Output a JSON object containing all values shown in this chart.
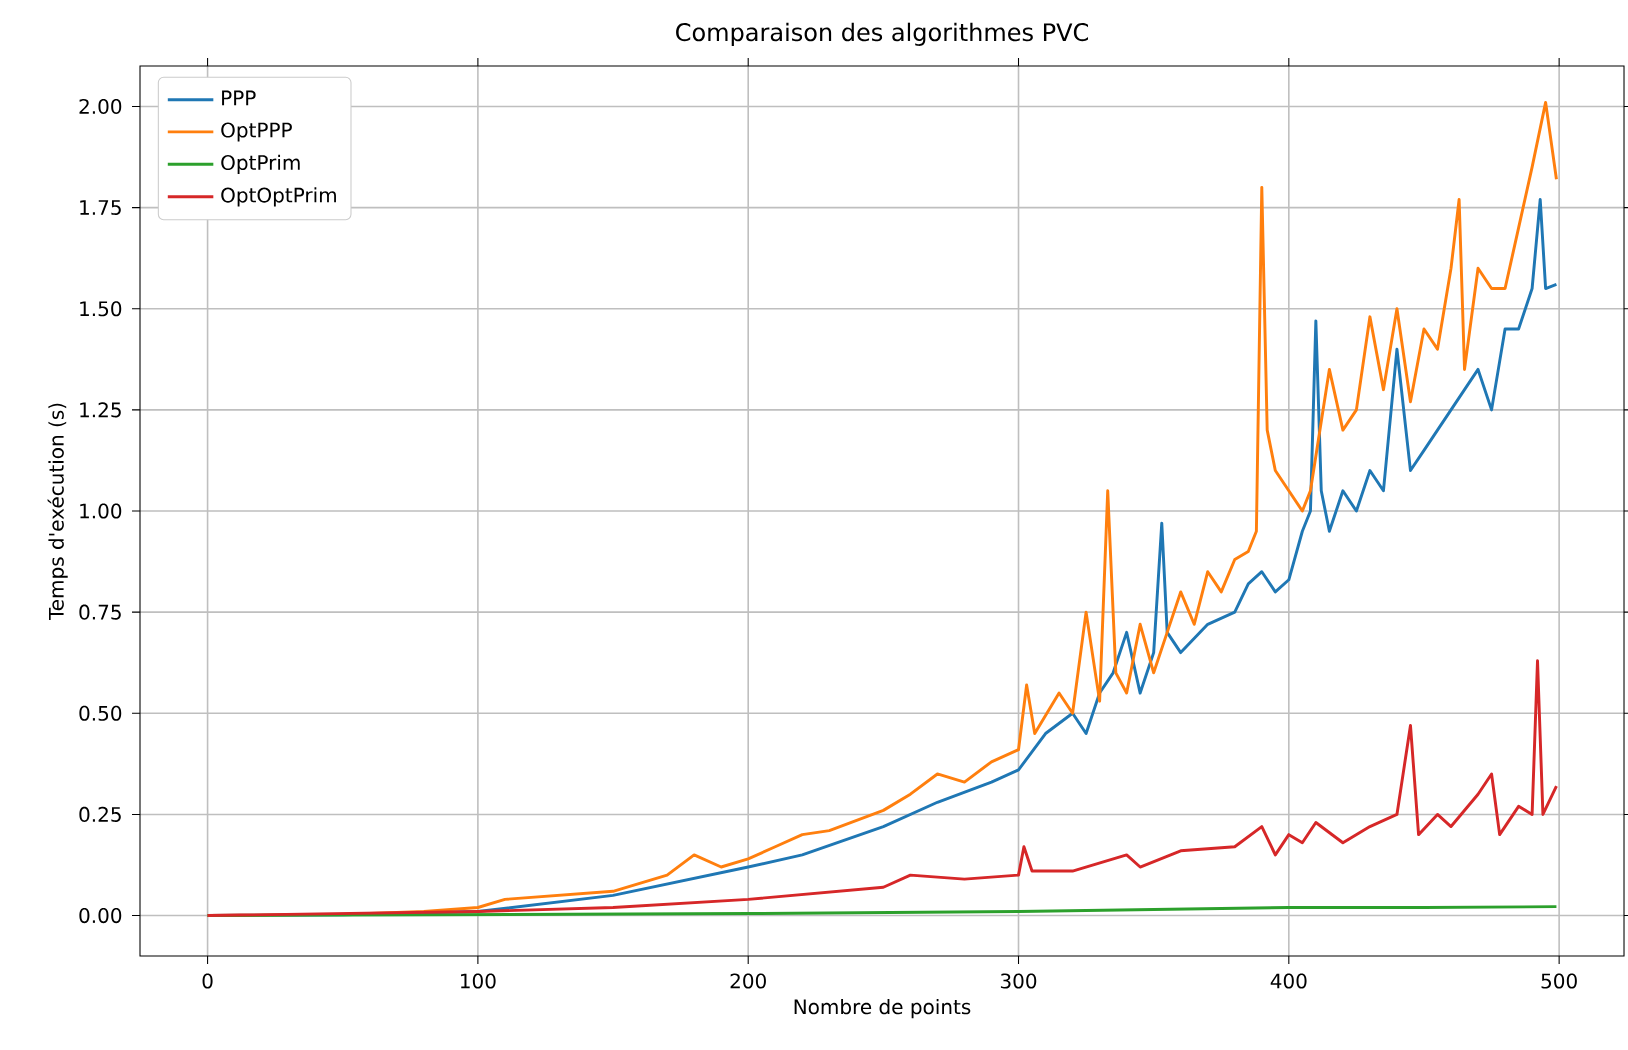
{
  "chart_data": {
    "type": "line",
    "title": "Comparaison des algorithmes PVC",
    "xlabel": "Nombre de points",
    "ylabel": "Temps d'exécution (s)",
    "xlim": [
      -25,
      524
    ],
    "ylim": [
      -0.1,
      2.1
    ],
    "xticks": [
      0,
      100,
      200,
      300,
      400,
      500
    ],
    "yticks": [
      {
        "value": 0,
        "label": "0.00"
      },
      {
        "value": 0.25,
        "label": "0.25"
      },
      {
        "value": 0.5,
        "label": "0.50"
      },
      {
        "value": 0.75,
        "label": "0.75"
      },
      {
        "value": 1.0,
        "label": "1.00"
      },
      {
        "value": 1.25,
        "label": "1.25"
      },
      {
        "value": 1.5,
        "label": "1.50"
      },
      {
        "value": 1.75,
        "label": "1.75"
      },
      {
        "value": 2.0,
        "label": "2.00"
      }
    ],
    "grid": true,
    "legend": "top left",
    "marker": "none",
    "line_style": "solid",
    "series": [
      {
        "name": "PPP",
        "color": "#1f77b4",
        "x": [
          0,
          50,
          100,
          150,
          200,
          220,
          250,
          270,
          290,
          300,
          310,
          320,
          325,
          330,
          335,
          340,
          345,
          350,
          353,
          355,
          360,
          370,
          380,
          385,
          390,
          395,
          400,
          405,
          408,
          410,
          412,
          415,
          420,
          425,
          430,
          435,
          440,
          445,
          450,
          455,
          460,
          465,
          470,
          475,
          480,
          485,
          490,
          493,
          495,
          499
        ],
        "values": [
          0,
          0.002,
          0.01,
          0.05,
          0.12,
          0.15,
          0.22,
          0.28,
          0.33,
          0.36,
          0.45,
          0.5,
          0.45,
          0.55,
          0.6,
          0.7,
          0.55,
          0.65,
          0.97,
          0.7,
          0.65,
          0.72,
          0.75,
          0.82,
          0.85,
          0.8,
          0.83,
          0.95,
          1.0,
          1.47,
          1.05,
          0.95,
          1.05,
          1.0,
          1.1,
          1.05,
          1.4,
          1.1,
          1.15,
          1.2,
          1.25,
          1.3,
          1.35,
          1.25,
          1.45,
          1.45,
          1.55,
          1.77,
          1.55,
          1.56
        ]
      },
      {
        "name": "OptPPP",
        "color": "#ff7f0e",
        "x": [
          0,
          50,
          80,
          100,
          110,
          130,
          150,
          170,
          180,
          190,
          200,
          210,
          220,
          230,
          250,
          260,
          270,
          280,
          290,
          300,
          303,
          306,
          315,
          320,
          325,
          330,
          333,
          336,
          340,
          345,
          350,
          355,
          360,
          365,
          370,
          375,
          380,
          385,
          388,
          390,
          392,
          395,
          400,
          405,
          408,
          415,
          420,
          425,
          430,
          435,
          440,
          445,
          450,
          455,
          460,
          463,
          465,
          470,
          475,
          480,
          485,
          490,
          495,
          499
        ],
        "values": [
          0,
          0.003,
          0.01,
          0.02,
          0.04,
          0.05,
          0.06,
          0.1,
          0.15,
          0.12,
          0.14,
          0.17,
          0.2,
          0.21,
          0.26,
          0.3,
          0.35,
          0.33,
          0.38,
          0.41,
          0.57,
          0.45,
          0.55,
          0.5,
          0.75,
          0.53,
          1.05,
          0.6,
          0.55,
          0.72,
          0.6,
          0.7,
          0.8,
          0.72,
          0.85,
          0.8,
          0.88,
          0.9,
          0.95,
          1.8,
          1.2,
          1.1,
          1.05,
          1.0,
          1.05,
          1.35,
          1.2,
          1.25,
          1.48,
          1.3,
          1.5,
          1.27,
          1.45,
          1.4,
          1.6,
          1.77,
          1.35,
          1.6,
          1.55,
          1.55,
          1.7,
          1.85,
          2.01,
          1.82
        ]
      },
      {
        "name": "OptPrim",
        "color": "#2ca02c",
        "x": [
          0,
          200,
          300,
          400,
          450,
          499
        ],
        "values": [
          0,
          0.005,
          0.01,
          0.02,
          0.02,
          0.022
        ]
      },
      {
        "name": "OptOptPrim",
        "color": "#d62728",
        "x": [
          0,
          100,
          150,
          200,
          250,
          260,
          280,
          300,
          302,
          305,
          320,
          340,
          345,
          360,
          380,
          390,
          395,
          400,
          405,
          410,
          420,
          430,
          440,
          445,
          448,
          455,
          460,
          470,
          475,
          478,
          485,
          490,
          492,
          494,
          499
        ],
        "values": [
          0,
          0.01,
          0.02,
          0.04,
          0.07,
          0.1,
          0.09,
          0.1,
          0.17,
          0.11,
          0.11,
          0.15,
          0.12,
          0.16,
          0.17,
          0.22,
          0.15,
          0.2,
          0.18,
          0.23,
          0.18,
          0.22,
          0.25,
          0.47,
          0.2,
          0.25,
          0.22,
          0.3,
          0.35,
          0.2,
          0.27,
          0.25,
          0.63,
          0.25,
          0.32
        ]
      }
    ]
  }
}
